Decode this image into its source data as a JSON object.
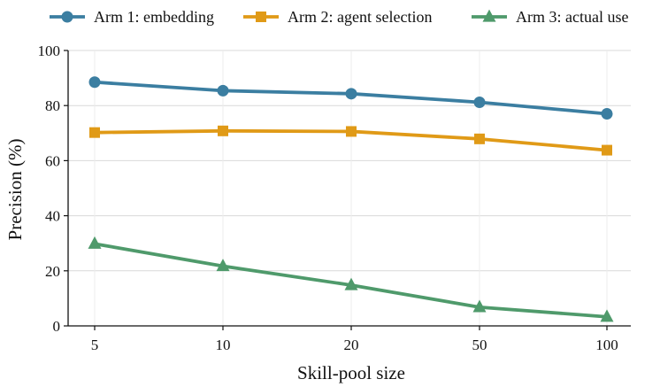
{
  "chart_data": {
    "type": "line",
    "title": "",
    "xlabel": "Skill-pool size",
    "ylabel": "Precision (%)",
    "categories": [
      "5",
      "10",
      "20",
      "50",
      "100"
    ],
    "ylim": [
      0,
      100
    ],
    "yticks": [
      "0",
      "20",
      "40",
      "60",
      "80",
      "100"
    ],
    "grid": true,
    "legend_position": "top",
    "series": [
      {
        "name": "Arm 1: embedding",
        "marker": "circle",
        "color": "#3b7ea1",
        "values": [
          88.5,
          85.4,
          84.3,
          81.2,
          77.0
        ]
      },
      {
        "name": "Arm 2: agent selection",
        "marker": "square",
        "color": "#e09a17",
        "values": [
          70.2,
          70.8,
          70.6,
          67.9,
          63.8
        ]
      },
      {
        "name": "Arm 3: actual use",
        "marker": "triangle",
        "color": "#4f9a6b",
        "values": [
          29.8,
          21.7,
          14.8,
          6.8,
          3.3
        ]
      }
    ]
  }
}
